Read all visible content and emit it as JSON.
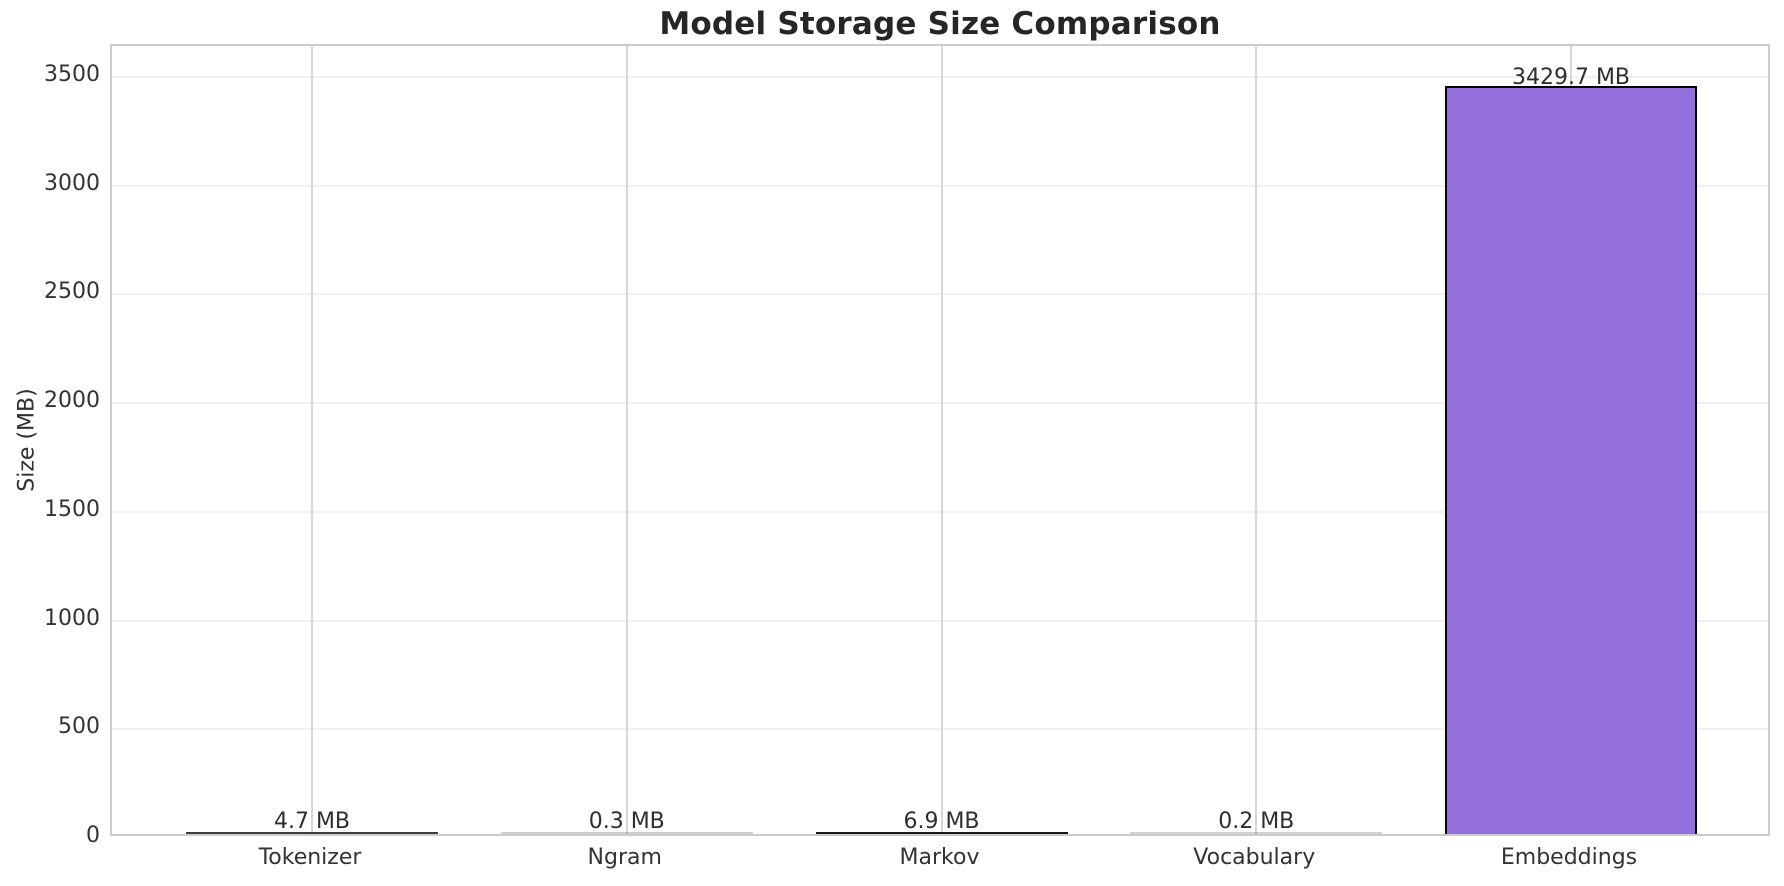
{
  "chart_data": {
    "type": "bar",
    "title": "Model Storage Size Comparison",
    "xlabel": "",
    "ylabel": "Size (MB)",
    "categories": [
      "Tokenizer",
      "Ngram",
      "Markov",
      "Vocabulary",
      "Embeddings"
    ],
    "values": [
      4.7,
      0.3,
      6.9,
      0.2,
      3429.7
    ],
    "value_labels": [
      "4.7 MB",
      "0.3 MB",
      "6.9 MB",
      "0.2 MB",
      "3429.7 MB"
    ],
    "yticks": [
      0,
      500,
      1000,
      1500,
      2000,
      2500,
      3000,
      3500
    ],
    "ylim": [
      0,
      3642
    ],
    "grid": true,
    "legend": "none",
    "bar_color": "#9370DB",
    "bar_edge_color": "#000000",
    "title_color": "#262626",
    "tick_color": "#333333",
    "hgrid_color": "#f0f0f0",
    "vgrid_color": "#d6d6d6"
  }
}
